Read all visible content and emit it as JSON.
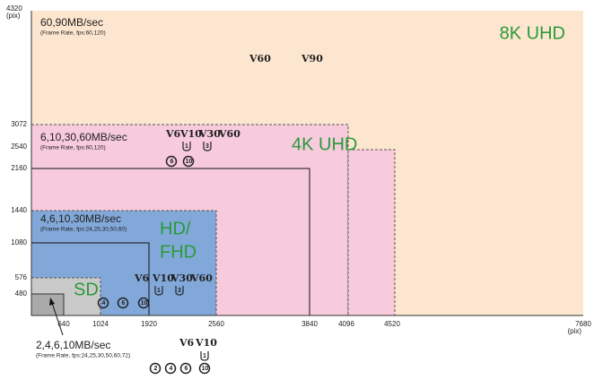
{
  "axis": {
    "y_unit": "(pix)",
    "x_unit": "(pix)",
    "y_ticks": [
      4320,
      3072,
      2540,
      2160,
      1440,
      1080,
      576,
      480
    ],
    "x_ticks": [
      640,
      1024,
      1920,
      2560,
      3840,
      4096,
      4520,
      7680
    ]
  },
  "zones": [
    {
      "label": "8K UHD",
      "speed": "60,90MB/sec",
      "note": "(Frame Rate, fps:60,120)",
      "video_classes": [
        "V60",
        "V90"
      ],
      "uhs_classes": [],
      "speed_classes": []
    },
    {
      "label": "4K UHD",
      "speed": "6,10,30,60MB/sec",
      "note": "(Frame Rate, fps:60,120)",
      "video_classes": [
        "V6",
        "V10",
        "V30",
        "V60"
      ],
      "uhs_classes": [
        "1",
        "3"
      ],
      "speed_classes": [
        "6",
        "10"
      ]
    },
    {
      "label": "HD/",
      "label2": "FHD",
      "speed": "4,6,10,30MB/sec",
      "note": "(Frame Rate, fps:24,25,30,50,60)",
      "video_classes": [
        "V6",
        "V10",
        "V30",
        "V60"
      ],
      "uhs_classes": [
        "1",
        "3"
      ],
      "speed_classes": [
        "4",
        "6",
        "10"
      ]
    },
    {
      "label": "SD",
      "speed": "2,4,6,10MB/sec",
      "note": "(Frame Rate, fps:24,25,30,50,60,72)",
      "video_classes": [
        "V6",
        "V10"
      ],
      "uhs_classes": [
        "1"
      ],
      "speed_classes": [
        "2",
        "4",
        "6",
        "10"
      ]
    }
  ]
}
